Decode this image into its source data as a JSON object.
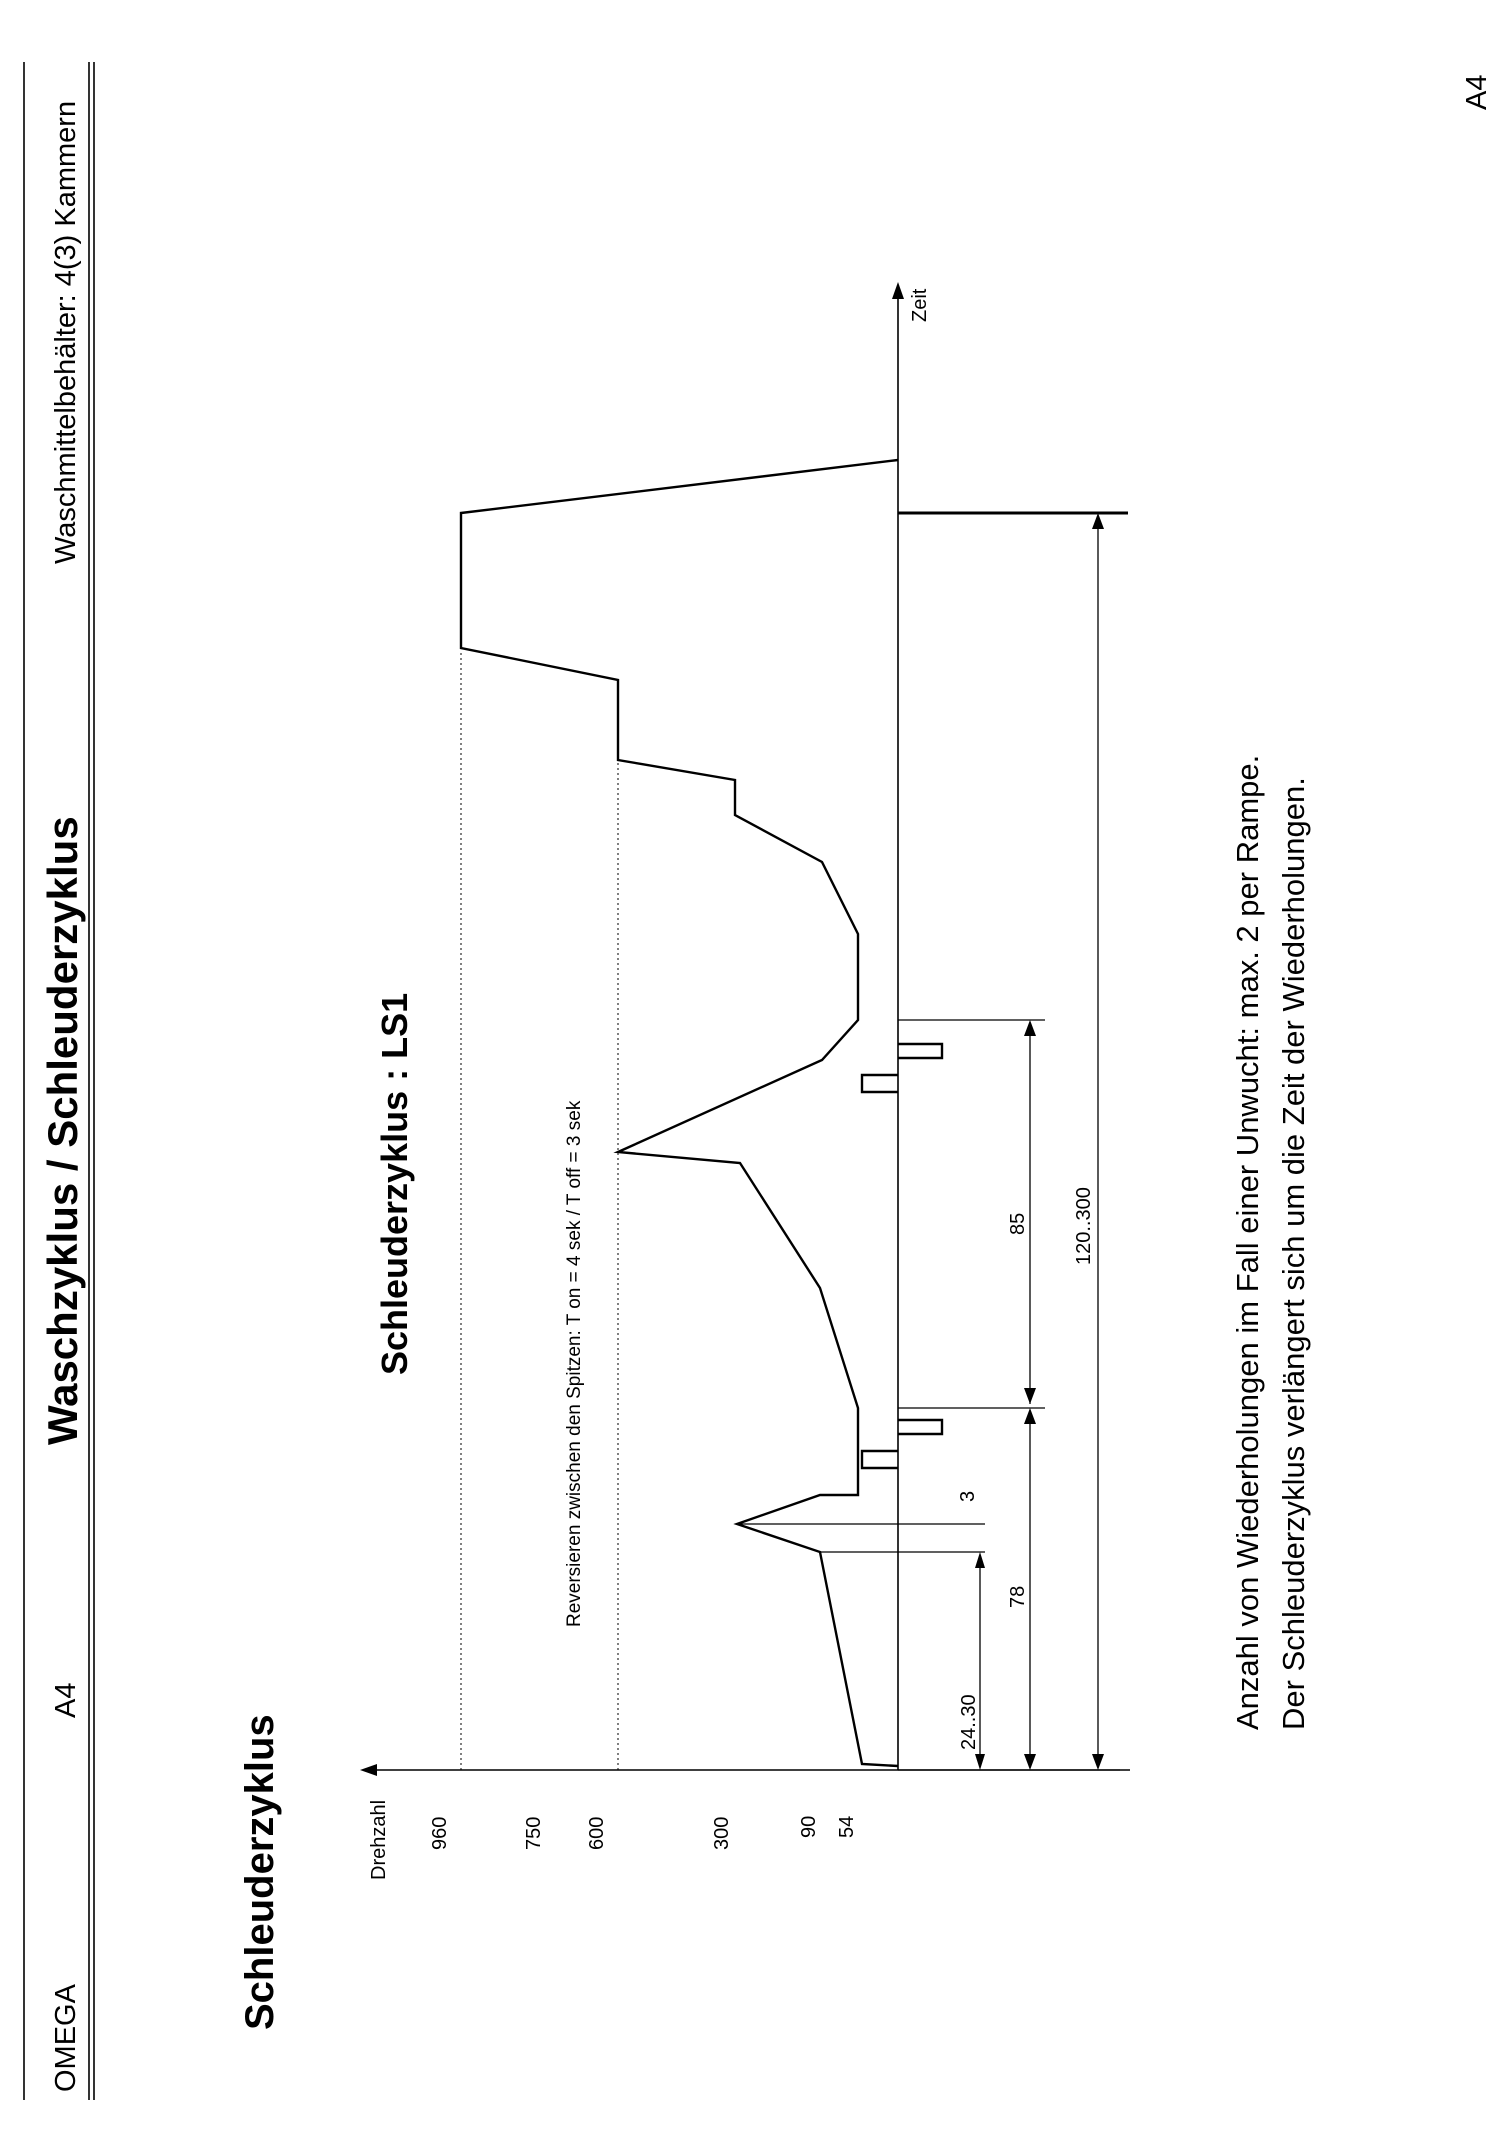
{
  "header": {
    "left": "OMEGA",
    "code": "A4",
    "title": "Waschzyklus / Schleuderzyklus",
    "right": "Waschmittelbehälter: 4(3) Kammern"
  },
  "page_number": "A4",
  "section_title": "Schleuderzyklus",
  "diagram": {
    "title": "Schleuderzyklus : LS1",
    "reverse_note": "Reversieren zwischen den Spitzen: T on = 4 sek / T off = 3 sek",
    "y_axis_label": "Drehzahl",
    "x_axis_label": "Zeit",
    "y_ticks": [
      "960",
      "750",
      "600",
      "300",
      "90",
      "54"
    ],
    "dimensions": {
      "d1": "24..30",
      "d2": "3",
      "d3": "78",
      "d4": "85",
      "d5": "120..300"
    }
  },
  "notes": {
    "line1": "Anzahl von Wiederholungen im Fall einer Unwucht: max. 2 per Rampe.",
    "line2": "Der Schleuderzyklus verlängert sich um die Zeit der Wiederholungen."
  }
}
